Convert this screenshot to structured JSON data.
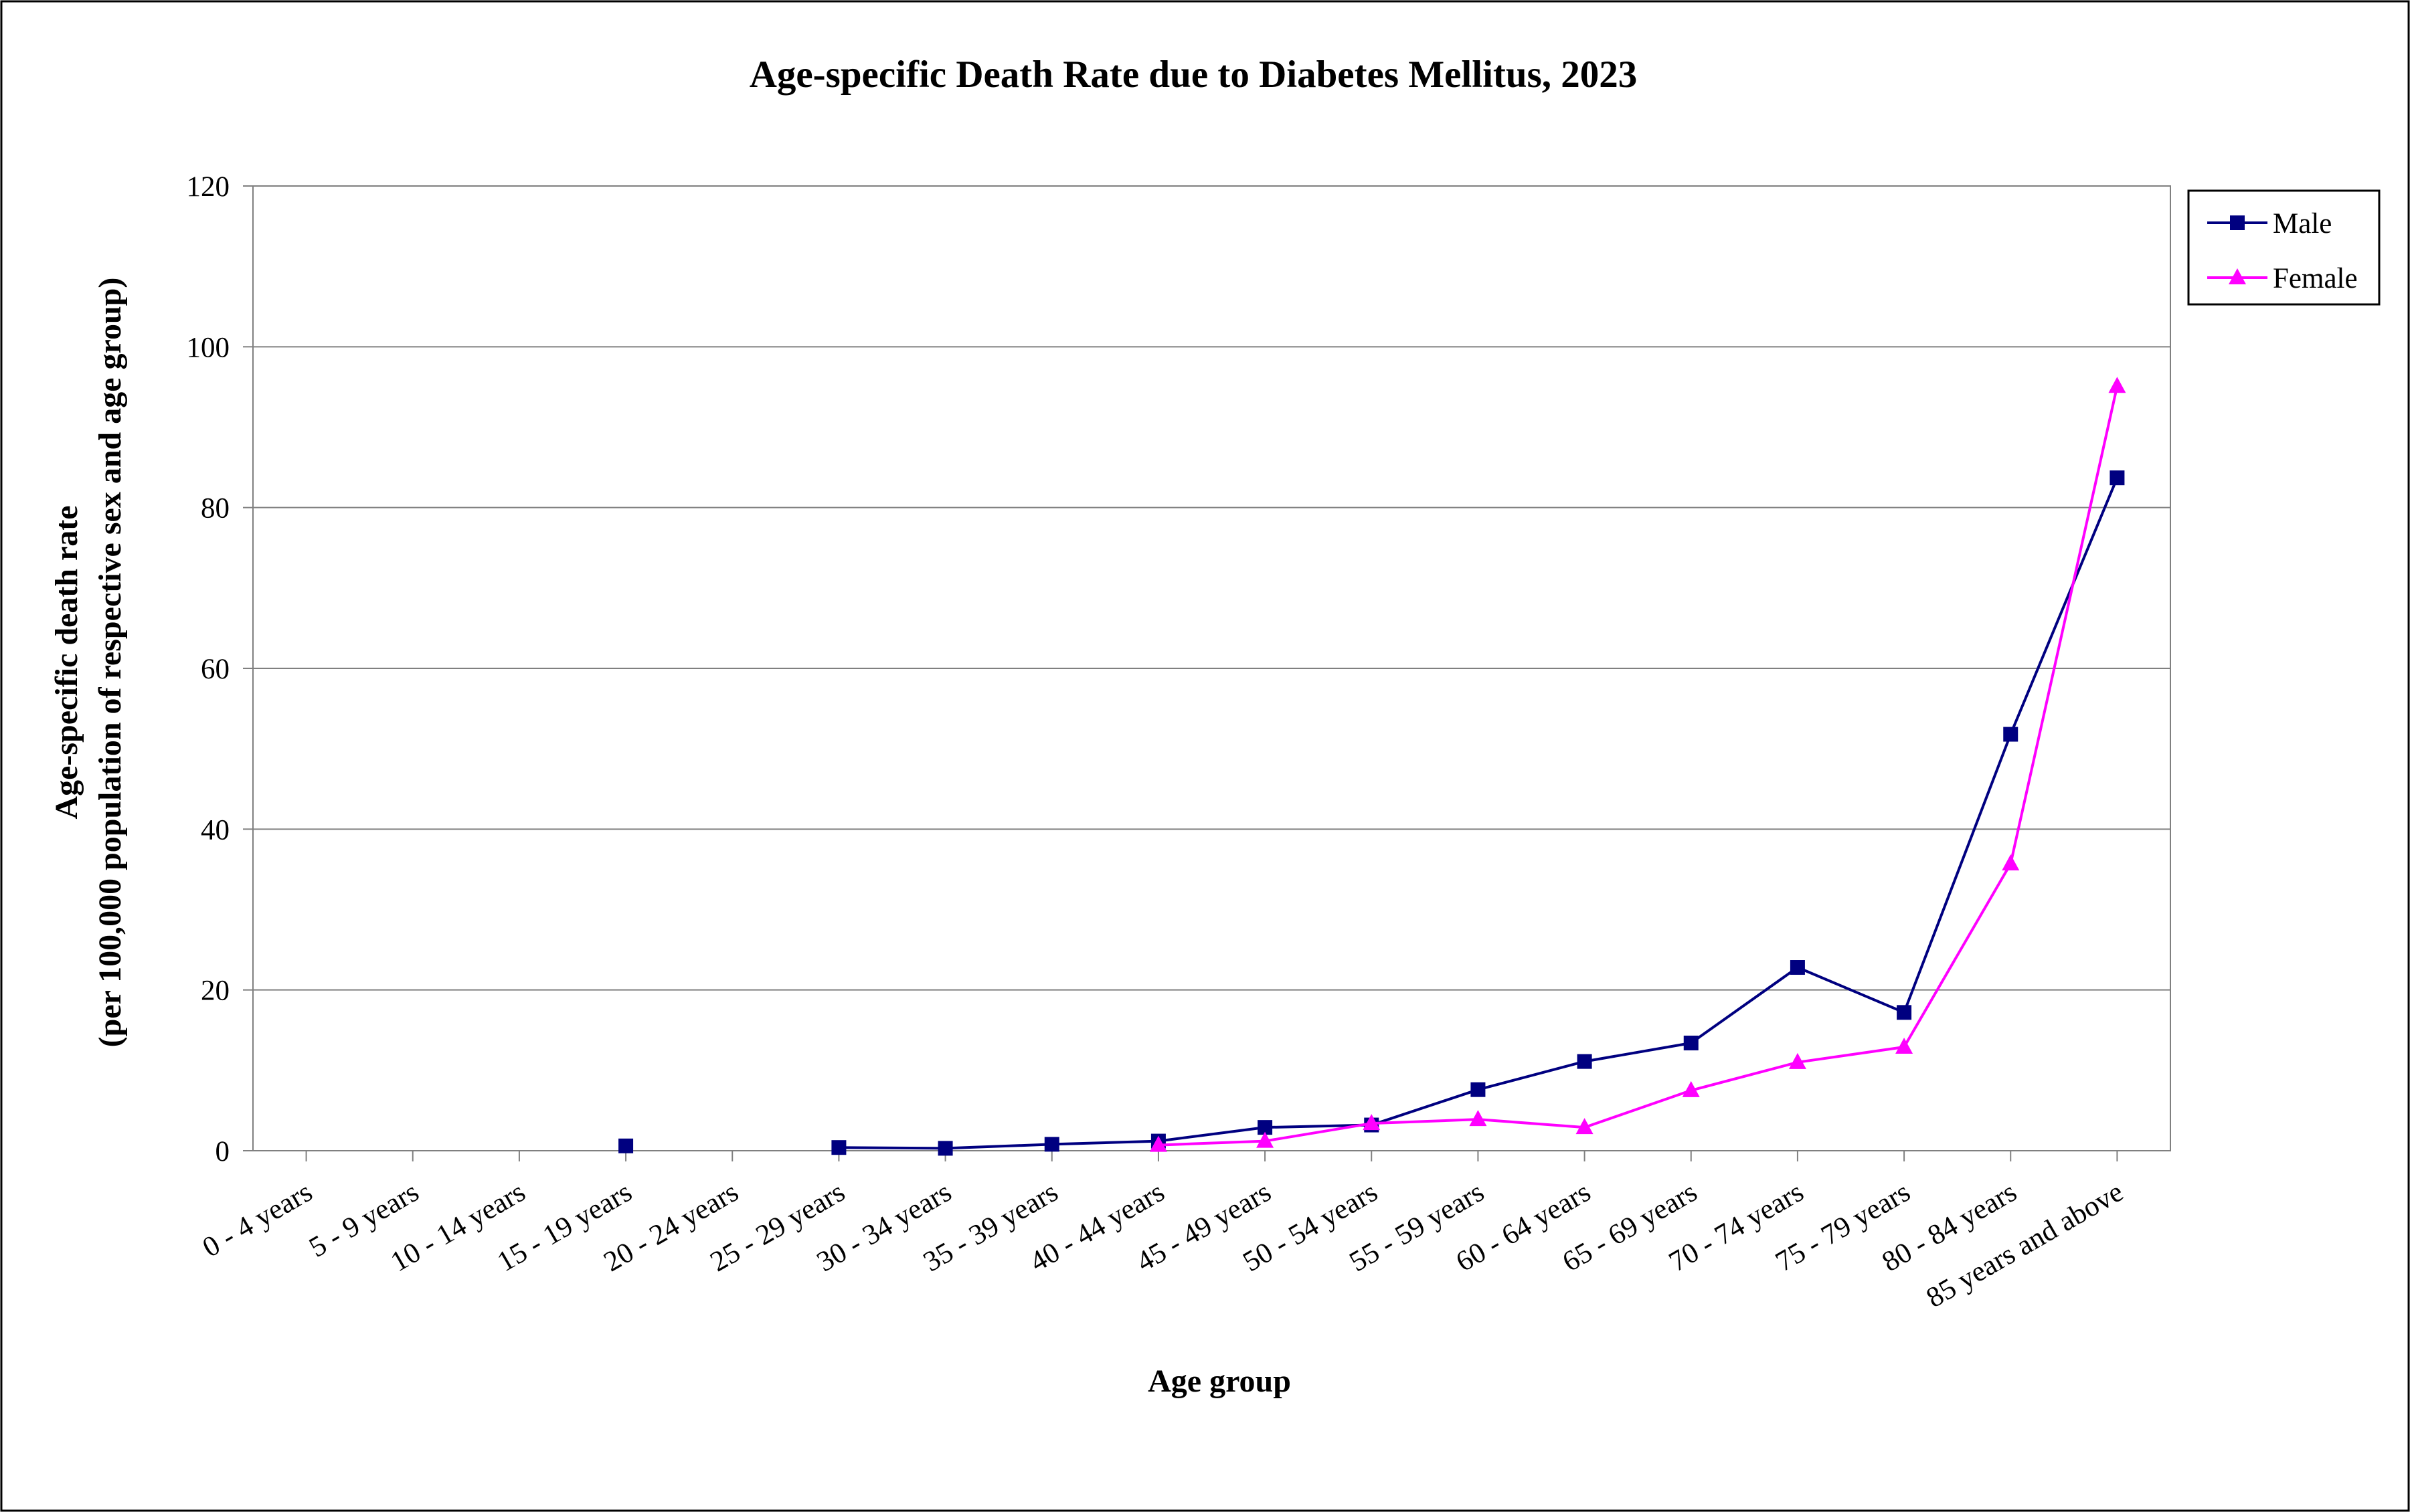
{
  "chart_data": {
    "type": "line",
    "title": "Age-specific Death Rate due to Diabetes Mellitus, 2023",
    "xlabel": "Age group",
    "ylabel": [
      "Age-specific death rate",
      "(per 100,000 population of respective sex and age group)"
    ],
    "ylim": [
      0,
      120
    ],
    "yticks": [
      0,
      20,
      40,
      60,
      80,
      100,
      120
    ],
    "grid": true,
    "legend_position": "right",
    "categories": [
      "0 - 4 years",
      "5 - 9 years",
      "10 - 14 years",
      "15 - 19 years",
      "20 - 24 years",
      "25 - 29 years",
      "30 - 34 years",
      "35 - 39 years",
      "40 - 44 years",
      "45 - 49 years",
      "50 - 54 years",
      "55 - 59 years",
      "60 - 64 years",
      "65 - 69 years",
      "70 - 74 years",
      "75 - 79 years",
      "80 - 84 years",
      "85 years and above"
    ],
    "series": [
      {
        "name": "Male",
        "color": "#000080",
        "marker": "square",
        "values": [
          null,
          null,
          null,
          0.6,
          null,
          0.4,
          0.3,
          0.8,
          1.2,
          2.9,
          3.2,
          7.6,
          11.1,
          13.4,
          22.8,
          17.2,
          51.8,
          83.7
        ]
      },
      {
        "name": "Female",
        "color": "#ff00ff",
        "marker": "triangle",
        "values": [
          null,
          null,
          null,
          null,
          null,
          null,
          null,
          null,
          0.7,
          1.2,
          3.4,
          3.9,
          2.9,
          7.5,
          11.0,
          12.9,
          35.7,
          95.1
        ]
      }
    ]
  }
}
